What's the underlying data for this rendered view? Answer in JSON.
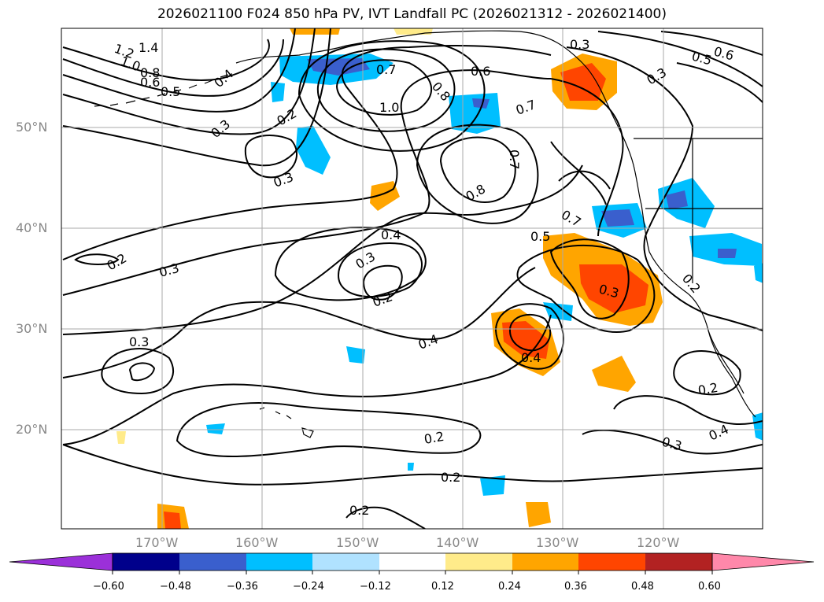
{
  "title": "2026021100 F024 850 hPa PV, IVT Landfall PC (2026021312 - 2026021400)",
  "lat_labels": [
    "50°N",
    "40°N",
    "30°N",
    "20°N"
  ],
  "lon_labels": [
    "170°W",
    "160°W",
    "150°W",
    "140°W",
    "130°W",
    "120°W"
  ],
  "contour_labels": [
    "1.2",
    "1.4",
    "1.0",
    "0.8",
    "0.6",
    "0.5",
    "0.4",
    "0.7",
    "0.8",
    "1.0",
    "0.6",
    "0.3",
    "0.5",
    "0.6",
    "0.3",
    "0.7",
    "0.2",
    "0.3",
    "0.3",
    "0.7",
    "0.8",
    "0.7",
    "0.4",
    "0.5",
    "0.3",
    "0.2",
    "0.2",
    "0.3",
    "0.3",
    "0.2",
    "0.3",
    "0.4",
    "0.4",
    "0.2",
    "0.2",
    "0.4",
    "0.3",
    "0.2",
    "0.2"
  ],
  "colorbar": {
    "tick_labels": [
      "−0.60",
      "−0.48",
      "−0.36",
      "−0.24",
      "−0.12",
      "0.12",
      "0.24",
      "0.36",
      "0.48",
      "0.60"
    ],
    "colors": [
      "#9b30d9",
      "#00008b",
      "#3a5fcd",
      "#00bfff",
      "#b0e2ff",
      "#ffffff",
      "#ffeb8a",
      "#ffa500",
      "#ff4500",
      "#b22222",
      "#ff88aa"
    ]
  }
}
